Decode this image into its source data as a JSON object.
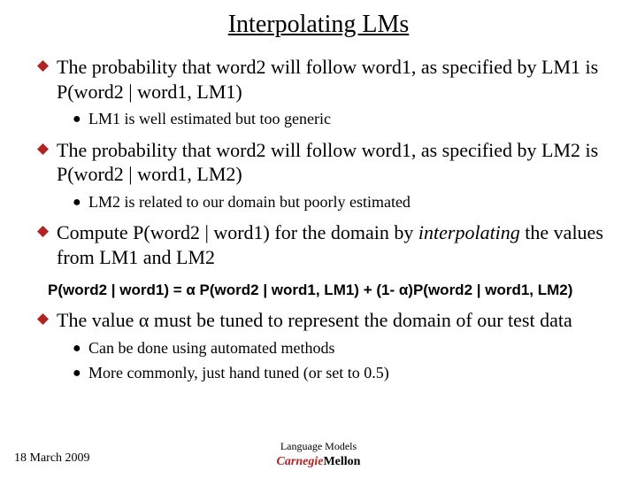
{
  "colors": {
    "diamond_fill": "#b22222",
    "text": "#000000",
    "cmu_red": "#b22222",
    "background": "#ffffff"
  },
  "title": "Interpolating LMs",
  "bullets": [
    {
      "text": "The probability that word2 will follow word1, as specified by LM1 is P(word2 | word1, LM1)",
      "sub": [
        "LM1 is well estimated but too generic"
      ]
    },
    {
      "text": "The probability that word2 will follow word1, as specified by LM2 is P(word2 | word1, LM2)",
      "sub": [
        "LM2 is related to our domain but poorly estimated"
      ]
    },
    {
      "html": "Compute P(word2 | word1) for the domain by <span class=\"italic\">interpolating</span> the values from LM1 and LM2",
      "sub": []
    }
  ],
  "formula": "P(word2 | word1) = α P(word2 | word1, LM1) + (1- α)P(word2 | word1, LM2)",
  "bullets2": [
    {
      "text": "The value α must be tuned to represent the domain of our test data",
      "sub": [
        "Can be done using automated methods",
        "More commonly, just hand tuned (or set to 0.5)"
      ]
    }
  ],
  "footer": {
    "date": "18 March 2009",
    "label": "Language Models",
    "cmu_c": "Carnegie",
    "cmu_m": "Mellon"
  }
}
